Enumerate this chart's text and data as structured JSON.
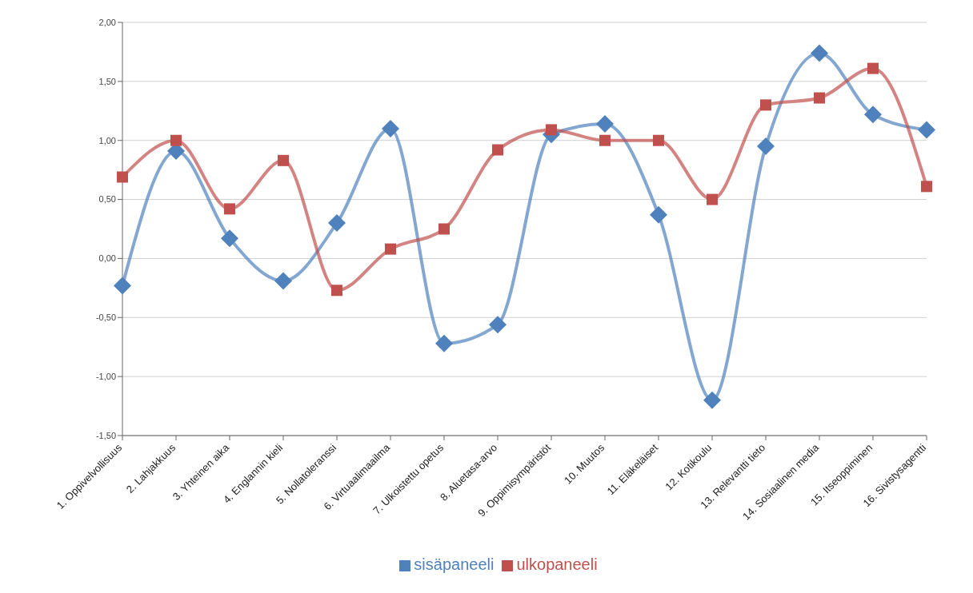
{
  "chart_data": {
    "type": "line",
    "categories": [
      "1. Oppivelvollisuus",
      "2. Lahjakkuus",
      "3. Yhteinen aika",
      "4. Englannin kieli",
      "5. Nollatoleranssi",
      "6. Virtuaalimaailma",
      "7. Ulkoistettu opetus",
      "8. Aluetasa-arvo",
      "9. Oppimisympäristöt",
      "10. Muutos",
      "11. Eläkeläiset",
      "12. Kotikoulu",
      "13. Relevantti tieto",
      "14. Sosiaalinen media",
      "15. Itseoppiminen",
      "16. Sivistysagentti"
    ],
    "series": [
      {
        "name": "sisäpaneeli",
        "color": "#4f81bd",
        "marker": "diamond",
        "values": [
          -0.23,
          0.91,
          0.17,
          -0.19,
          0.3,
          1.1,
          -0.72,
          -0.56,
          1.05,
          1.14,
          0.37,
          -1.2,
          0.95,
          1.74,
          1.22,
          1.09
        ]
      },
      {
        "name": "ulkopaneeli",
        "color": "#c0504d",
        "marker": "square",
        "values": [
          0.69,
          1.0,
          0.42,
          0.83,
          -0.27,
          0.08,
          0.25,
          0.92,
          1.09,
          1.0,
          1.0,
          0.5,
          1.3,
          1.36,
          1.61,
          0.61
        ]
      }
    ],
    "ylim": [
      -1.5,
      2
    ],
    "yticks": [
      {
        "value": -1.5,
        "label": "-1,50"
      },
      {
        "value": -1,
        "label": "-1,00"
      },
      {
        "value": -0.5,
        "label": "-0,50"
      },
      {
        "value": 0,
        "label": "0,00"
      },
      {
        "value": 0.5,
        "label": "0,50"
      },
      {
        "value": 1,
        "label": "1,00"
      },
      {
        "value": 1.5,
        "label": "1,50"
      },
      {
        "value": 2,
        "label": "2,00"
      }
    ],
    "grid": "y",
    "legend": "bottom"
  }
}
